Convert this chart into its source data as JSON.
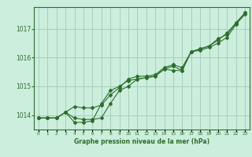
{
  "background_color": "#cceedd",
  "grid_color": "#aaccbb",
  "line_color": "#2d6e2d",
  "marker_color": "#2d6e2d",
  "xlabel": "Graphe pression niveau de la mer (hPa)",
  "ylim": [
    1013.5,
    1017.75
  ],
  "xlim": [
    -0.5,
    23.5
  ],
  "yticks": [
    1014,
    1015,
    1016,
    1017
  ],
  "xticks": [
    0,
    1,
    2,
    3,
    4,
    5,
    6,
    7,
    8,
    9,
    10,
    11,
    12,
    13,
    14,
    15,
    16,
    17,
    18,
    19,
    20,
    21,
    22,
    23
  ],
  "series1": [
    1013.9,
    1013.9,
    1013.9,
    1014.1,
    1013.9,
    1013.85,
    1013.85,
    1013.9,
    1014.4,
    1014.85,
    1015.0,
    1015.25,
    1015.3,
    1015.35,
    1015.6,
    1015.7,
    1015.55,
    1016.2,
    1016.25,
    1016.35,
    1016.5,
    1016.7,
    1017.15,
    1017.5
  ],
  "series2": [
    1013.9,
    1013.9,
    1013.9,
    1014.1,
    1013.75,
    1013.75,
    1013.8,
    1014.4,
    1014.85,
    1015.0,
    1015.2,
    1015.25,
    1015.3,
    1015.35,
    1015.6,
    1015.55,
    1015.55,
    1016.2,
    1016.3,
    1016.4,
    1016.65,
    1016.8,
    1017.2,
    1017.55
  ],
  "series3": [
    1013.9,
    1013.9,
    1013.9,
    1014.1,
    1014.3,
    1014.25,
    1014.25,
    1014.35,
    1014.7,
    1014.95,
    1015.25,
    1015.35,
    1015.35,
    1015.4,
    1015.65,
    1015.75,
    1015.65,
    1016.2,
    1016.3,
    1016.4,
    1016.6,
    1016.85,
    1017.2,
    1017.55
  ]
}
